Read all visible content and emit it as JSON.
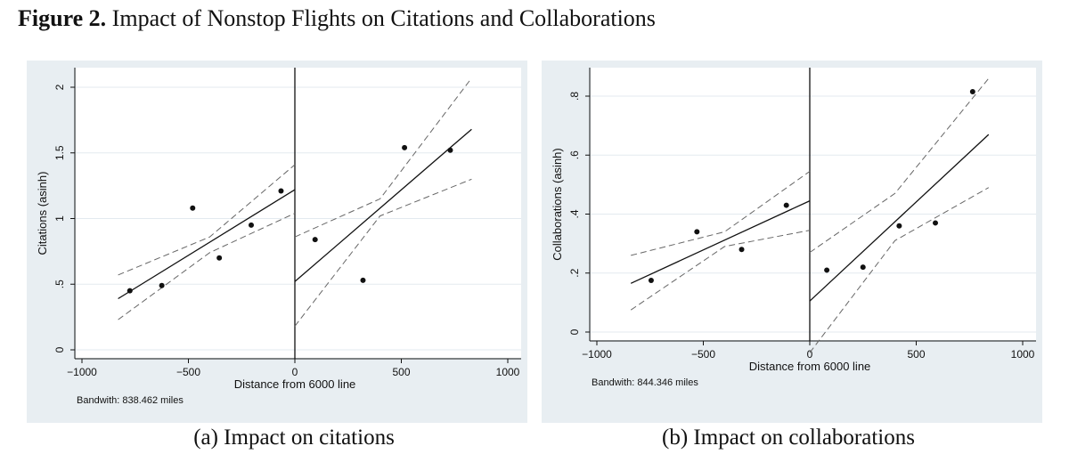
{
  "figure": {
    "label": "Figure 2.",
    "title": "Impact of Nonstop Flights on Citations and Collaborations"
  },
  "chart_data": [
    {
      "type": "scatter",
      "caption": "(a) Impact on citations",
      "xlabel": "Distance from 6000 line",
      "ylabel": "Citations (asinh)",
      "note": "Bandwith: 838.462 miles",
      "xlim": [
        -1000,
        1000
      ],
      "ylim": [
        0,
        2
      ],
      "xticks": [
        -1000,
        -500,
        0,
        500,
        1000
      ],
      "xtick_labels": [
        "−1000",
        "−500",
        "0",
        "500",
        "1000"
      ],
      "yticks": [
        0,
        0.5,
        1,
        1.5,
        2
      ],
      "ytick_labels": [
        "0",
        ".5",
        "1",
        "1.5",
        "2"
      ],
      "cutoff": 0,
      "points": [
        {
          "x": -775,
          "y": 0.45
        },
        {
          "x": -625,
          "y": 0.49
        },
        {
          "x": -480,
          "y": 1.08
        },
        {
          "x": -355,
          "y": 0.7
        },
        {
          "x": -205,
          "y": 0.95
        },
        {
          "x": -65,
          "y": 1.21
        },
        {
          "x": 95,
          "y": 0.84
        },
        {
          "x": 320,
          "y": 0.53
        },
        {
          "x": 515,
          "y": 1.54
        },
        {
          "x": 730,
          "y": 1.52
        }
      ],
      "fit_left": {
        "x": [
          -830,
          0
        ],
        "y": [
          0.39,
          1.22
        ]
      },
      "ci_left_upper": {
        "x": [
          -830,
          -400,
          0
        ],
        "y": [
          0.57,
          0.86,
          1.41
        ]
      },
      "ci_left_lower": {
        "x": [
          -830,
          -400,
          0
        ],
        "y": [
          0.23,
          0.74,
          1.04
        ]
      },
      "fit_right": {
        "x": [
          0,
          830
        ],
        "y": [
          0.52,
          1.68
        ]
      },
      "ci_right_upper": {
        "x": [
          0,
          400,
          830
        ],
        "y": [
          0.86,
          1.15,
          2.07
        ]
      },
      "ci_right_lower": {
        "x": [
          0,
          400,
          830
        ],
        "y": [
          0.18,
          1.02,
          1.3
        ]
      }
    },
    {
      "type": "scatter",
      "caption": "(b) Impact on collaborations",
      "xlabel": "Distance from 6000 line",
      "ylabel": "Collaborations (asinh)",
      "note": "Bandwith: 844.346 miles",
      "xlim": [
        -1000,
        1000
      ],
      "ylim": [
        0,
        0.8
      ],
      "xticks": [
        -1000,
        -500,
        0,
        500,
        1000
      ],
      "xtick_labels": [
        "−1000",
        "−500",
        "0",
        "500",
        "1000"
      ],
      "yticks": [
        0,
        0.2,
        0.4,
        0.6,
        0.8
      ],
      "ytick_labels": [
        "0",
        ".2",
        ".4",
        ".6",
        ".8"
      ],
      "cutoff": 0,
      "points": [
        {
          "x": -745,
          "y": 0.175
        },
        {
          "x": -530,
          "y": 0.34
        },
        {
          "x": -320,
          "y": 0.28
        },
        {
          "x": -110,
          "y": 0.43
        },
        {
          "x": 80,
          "y": 0.21
        },
        {
          "x": 250,
          "y": 0.22
        },
        {
          "x": 420,
          "y": 0.36
        },
        {
          "x": 590,
          "y": 0.37
        },
        {
          "x": 765,
          "y": 0.815
        }
      ],
      "fit_left": {
        "x": [
          -840,
          0
        ],
        "y": [
          0.165,
          0.445
        ]
      },
      "ci_left_upper": {
        "x": [
          -840,
          -400,
          0
        ],
        "y": [
          0.26,
          0.34,
          0.545
        ]
      },
      "ci_left_lower": {
        "x": [
          -840,
          -400,
          0
        ],
        "y": [
          0.075,
          0.29,
          0.345
        ]
      },
      "fit_right": {
        "x": [
          0,
          840
        ],
        "y": [
          0.105,
          0.67
        ]
      },
      "ci_right_upper": {
        "x": [
          0,
          400,
          840
        ],
        "y": [
          0.27,
          0.47,
          0.86
        ]
      },
      "ci_right_lower": {
        "x": [
          0,
          400,
          840
        ],
        "y": [
          -0.07,
          0.31,
          0.49
        ]
      }
    }
  ]
}
